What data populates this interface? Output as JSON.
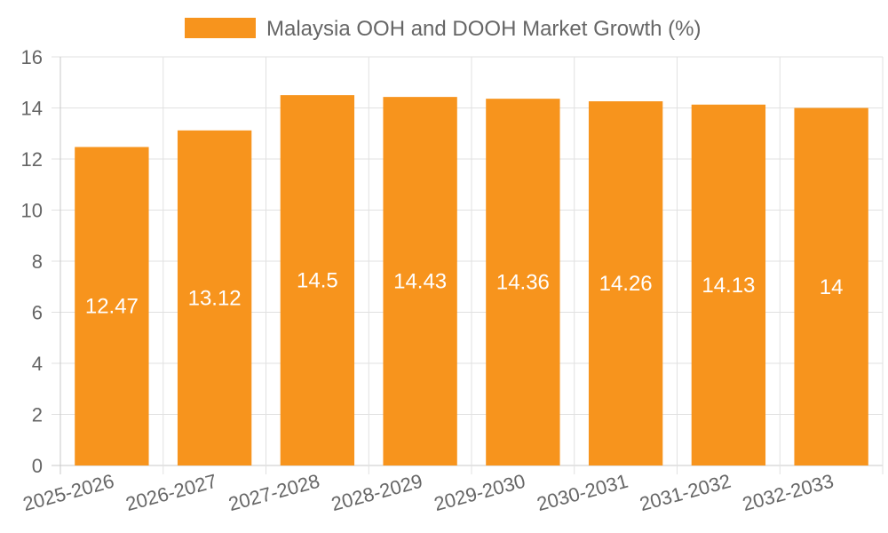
{
  "chart_data": {
    "type": "bar",
    "title": "",
    "xlabel": "",
    "ylabel": "",
    "categories": [
      "2025-2026",
      "2026-2027",
      "2027-2028",
      "2028-2029",
      "2029-2030",
      "2030-2031",
      "2031-2032",
      "2032-2033"
    ],
    "series": [
      {
        "name": "Malaysia OOH and DOOH Market Growth (%)",
        "values": [
          12.47,
          13.12,
          14.5,
          14.43,
          14.36,
          14.26,
          14.13,
          14
        ],
        "color": "#f7941d"
      }
    ],
    "ylim": [
      0,
      16
    ],
    "yticks": [
      0,
      2,
      4,
      6,
      8,
      10,
      12,
      14,
      16
    ],
    "grid": true,
    "legend_position": "top",
    "data_labels": [
      "12.47",
      "13.12",
      "14.5",
      "14.43",
      "14.36",
      "14.26",
      "14.13",
      "14"
    ]
  },
  "colors": {
    "bar": "#f7941d",
    "grid": "#e1e1e1",
    "axis": "#c9c9c9",
    "text": "#666666"
  }
}
